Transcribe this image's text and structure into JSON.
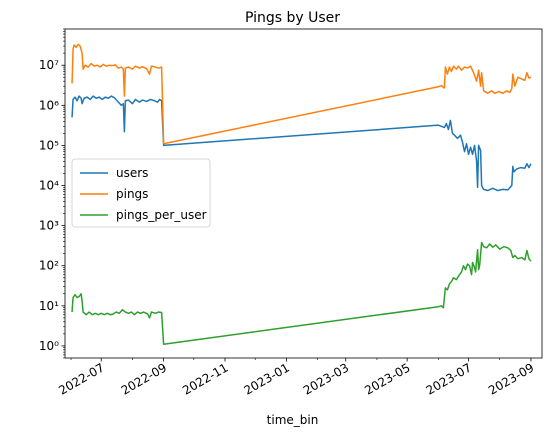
{
  "chart_data": {
    "type": "line",
    "title": "Pings by User",
    "xlabel": "time_bin",
    "ylabel": "",
    "yscale": "log",
    "ylim": [
      0.5,
      80000000
    ],
    "xlim": [
      "2022-05-26",
      "2023-09-12"
    ],
    "x_ticks": [
      "2022-07-01",
      "2022-09-01",
      "2022-11-01",
      "2023-01-01",
      "2023-03-01",
      "2023-05-01",
      "2023-07-01",
      "2023-09-01"
    ],
    "x_tick_labels": [
      "2022-07",
      "2022-09",
      "2022-11",
      "2023-01",
      "2023-03",
      "2023-05",
      "2023-07",
      "2023-09"
    ],
    "y_ticks": [
      1,
      10,
      100,
      1000,
      10000,
      100000,
      1000000,
      10000000
    ],
    "y_tick_labels": [
      "10⁰",
      "10¹",
      "10²",
      "10³",
      "10⁴",
      "10⁵",
      "10⁶",
      "10⁷"
    ],
    "legend_position": "center-left",
    "grid": false,
    "series": [
      {
        "name": "users",
        "color": "#1f77b4",
        "points": [
          [
            "2022-06-02",
            500000
          ],
          [
            "2022-06-03",
            1400000
          ],
          [
            "2022-06-05",
            1600000
          ],
          [
            "2022-06-07",
            1300000
          ],
          [
            "2022-06-09",
            1700000
          ],
          [
            "2022-06-11",
            1500000
          ],
          [
            "2022-06-12",
            1100000
          ],
          [
            "2022-06-14",
            1500000
          ],
          [
            "2022-06-17",
            1600000
          ],
          [
            "2022-06-20",
            1400000
          ],
          [
            "2022-06-23",
            1700000
          ],
          [
            "2022-06-26",
            1500000
          ],
          [
            "2022-06-29",
            1600000
          ],
          [
            "2022-07-02",
            1400000
          ],
          [
            "2022-07-05",
            1600000
          ],
          [
            "2022-07-08",
            1500000
          ],
          [
            "2022-07-11",
            1700000
          ],
          [
            "2022-07-14",
            1550000
          ],
          [
            "2022-07-18",
            1200000
          ],
          [
            "2022-07-21",
            1000000
          ],
          [
            "2022-07-23",
            1100000
          ],
          [
            "2022-07-24",
            220000
          ],
          [
            "2022-07-25",
            1300000
          ],
          [
            "2022-07-28",
            1350000
          ],
          [
            "2022-08-01",
            1100000
          ],
          [
            "2022-08-04",
            1400000
          ],
          [
            "2022-08-08",
            1200000
          ],
          [
            "2022-08-11",
            1350000
          ],
          [
            "2022-08-15",
            1250000
          ],
          [
            "2022-08-19",
            1400000
          ],
          [
            "2022-08-23",
            1300000
          ],
          [
            "2022-08-26",
            1200000
          ],
          [
            "2022-08-28",
            1400000
          ],
          [
            "2022-08-30",
            1300000
          ],
          [
            "2022-09-01",
            100000
          ],
          [
            "2023-06-01",
            320000
          ],
          [
            "2023-06-04",
            300000
          ],
          [
            "2023-06-07",
            280000
          ],
          [
            "2023-06-09",
            350000
          ],
          [
            "2023-06-11",
            250000
          ],
          [
            "2023-06-13",
            420000
          ],
          [
            "2023-06-15",
            200000
          ],
          [
            "2023-06-17",
            180000
          ],
          [
            "2023-06-20",
            150000
          ],
          [
            "2023-06-23",
            180000
          ],
          [
            "2023-06-25",
            120000
          ],
          [
            "2023-06-27",
            70000
          ],
          [
            "2023-06-29",
            110000
          ],
          [
            "2023-07-01",
            60000
          ],
          [
            "2023-07-03",
            90000
          ],
          [
            "2023-07-05",
            60000
          ],
          [
            "2023-07-07",
            100000
          ],
          [
            "2023-07-09",
            40000
          ],
          [
            "2023-07-10",
            9000
          ],
          [
            "2023-07-11",
            100000
          ],
          [
            "2023-07-13",
            75000
          ],
          [
            "2023-07-14",
            10000
          ],
          [
            "2023-07-16",
            8000
          ],
          [
            "2023-07-20",
            7500
          ],
          [
            "2023-07-25",
            8500
          ],
          [
            "2023-07-30",
            7500
          ],
          [
            "2023-08-04",
            8000
          ],
          [
            "2023-08-09",
            7800
          ],
          [
            "2023-08-13",
            10000
          ],
          [
            "2023-08-14",
            30000
          ],
          [
            "2023-08-15",
            22000
          ],
          [
            "2023-08-18",
            26000
          ],
          [
            "2023-08-22",
            28000
          ],
          [
            "2023-08-26",
            27000
          ],
          [
            "2023-08-28",
            35000
          ],
          [
            "2023-08-30",
            28000
          ],
          [
            "2023-09-01",
            35000
          ]
        ]
      },
      {
        "name": "pings",
        "color": "#ff7f0e",
        "points": [
          [
            "2022-06-02",
            3500000
          ],
          [
            "2022-06-03",
            25000000
          ],
          [
            "2022-06-04",
            32000000
          ],
          [
            "2022-06-06",
            28000000
          ],
          [
            "2022-06-08",
            33000000
          ],
          [
            "2022-06-10",
            30000000
          ],
          [
            "2022-06-12",
            20000000
          ],
          [
            "2022-06-13",
            8000000
          ],
          [
            "2022-06-15",
            10000000
          ],
          [
            "2022-06-18",
            9000000
          ],
          [
            "2022-06-21",
            11000000
          ],
          [
            "2022-06-24",
            9500000
          ],
          [
            "2022-06-27",
            10000000
          ],
          [
            "2022-06-30",
            9000000
          ],
          [
            "2022-07-03",
            10500000
          ],
          [
            "2022-07-06",
            9500000
          ],
          [
            "2022-07-09",
            10000000
          ],
          [
            "2022-07-12",
            9800000
          ],
          [
            "2022-07-15",
            10200000
          ],
          [
            "2022-07-18",
            8500000
          ],
          [
            "2022-07-21",
            9000000
          ],
          [
            "2022-07-23",
            8000000
          ],
          [
            "2022-07-24",
            1700000
          ],
          [
            "2022-07-25",
            8500000
          ],
          [
            "2022-07-28",
            9000000
          ],
          [
            "2022-08-01",
            8000000
          ],
          [
            "2022-08-04",
            9500000
          ],
          [
            "2022-08-08",
            8500000
          ],
          [
            "2022-08-11",
            9200000
          ],
          [
            "2022-08-15",
            8200000
          ],
          [
            "2022-08-18",
            6000000
          ],
          [
            "2022-08-20",
            9500000
          ],
          [
            "2022-08-24",
            9000000
          ],
          [
            "2022-08-27",
            8500000
          ],
          [
            "2022-08-30",
            9000000
          ],
          [
            "2022-09-01",
            110000
          ],
          [
            "2023-06-01",
            2900000
          ],
          [
            "2023-06-04",
            3100000
          ],
          [
            "2023-06-07",
            2700000
          ],
          [
            "2023-06-08",
            9000000
          ],
          [
            "2023-06-10",
            6000000
          ],
          [
            "2023-06-12",
            9000000
          ],
          [
            "2023-06-14",
            7000000
          ],
          [
            "2023-06-16",
            9500000
          ],
          [
            "2023-06-19",
            8000000
          ],
          [
            "2023-06-21",
            9500000
          ],
          [
            "2023-06-24",
            7500000
          ],
          [
            "2023-06-27",
            9000000
          ],
          [
            "2023-06-30",
            8500000
          ],
          [
            "2023-07-03",
            9500000
          ],
          [
            "2023-07-06",
            6500000
          ],
          [
            "2023-07-09",
            4000000
          ],
          [
            "2023-07-11",
            7500000
          ],
          [
            "2023-07-13",
            3000000
          ],
          [
            "2023-07-14",
            6500000
          ],
          [
            "2023-07-16",
            2300000
          ],
          [
            "2023-07-20",
            2000000
          ],
          [
            "2023-07-24",
            2300000
          ],
          [
            "2023-07-27",
            2000000
          ],
          [
            "2023-07-31",
            2200000
          ],
          [
            "2023-08-04",
            2000000
          ],
          [
            "2023-08-08",
            2300000
          ],
          [
            "2023-08-11",
            2100000
          ],
          [
            "2023-08-13",
            2600000
          ],
          [
            "2023-08-14",
            6000000
          ],
          [
            "2023-08-16",
            3000000
          ],
          [
            "2023-08-19",
            5000000
          ],
          [
            "2023-08-23",
            4500000
          ],
          [
            "2023-08-26",
            4200000
          ],
          [
            "2023-08-28",
            6500000
          ],
          [
            "2023-08-30",
            4800000
          ],
          [
            "2023-09-01",
            5000000
          ]
        ]
      },
      {
        "name": "pings_per_user",
        "color": "#2ca02c",
        "points": [
          [
            "2022-06-02",
            7
          ],
          [
            "2022-06-03",
            16
          ],
          [
            "2022-06-05",
            19
          ],
          [
            "2022-06-07",
            16
          ],
          [
            "2022-06-09",
            17
          ],
          [
            "2022-06-11",
            20
          ],
          [
            "2022-06-12",
            13
          ],
          [
            "2022-06-13",
            7
          ],
          [
            "2022-06-16",
            6
          ],
          [
            "2022-06-19",
            7
          ],
          [
            "2022-06-22",
            6
          ],
          [
            "2022-06-25",
            6.5
          ],
          [
            "2022-06-28",
            6
          ],
          [
            "2022-07-01",
            6.5
          ],
          [
            "2022-07-04",
            6
          ],
          [
            "2022-07-07",
            6.5
          ],
          [
            "2022-07-10",
            6
          ],
          [
            "2022-07-13",
            6.3
          ],
          [
            "2022-07-16",
            7
          ],
          [
            "2022-07-19",
            6.5
          ],
          [
            "2022-07-22",
            8
          ],
          [
            "2022-07-25",
            7
          ],
          [
            "2022-07-28",
            6.5
          ],
          [
            "2022-07-31",
            7
          ],
          [
            "2022-08-03",
            6
          ],
          [
            "2022-08-06",
            7
          ],
          [
            "2022-08-09",
            6.5
          ],
          [
            "2022-08-12",
            7
          ],
          [
            "2022-08-16",
            6.3
          ],
          [
            "2022-08-18",
            5
          ],
          [
            "2022-08-20",
            7
          ],
          [
            "2022-08-24",
            6.5
          ],
          [
            "2022-08-27",
            7
          ],
          [
            "2022-08-30",
            6.8
          ],
          [
            "2022-09-01",
            1.1
          ],
          [
            "2023-06-01",
            9.5
          ],
          [
            "2023-06-04",
            10
          ],
          [
            "2023-06-06",
            9
          ],
          [
            "2023-06-08",
            28
          ],
          [
            "2023-06-10",
            25
          ],
          [
            "2023-06-12",
            35
          ],
          [
            "2023-06-14",
            40
          ],
          [
            "2023-06-16",
            50
          ],
          [
            "2023-06-19",
            45
          ],
          [
            "2023-06-21",
            55
          ],
          [
            "2023-06-24",
            70
          ],
          [
            "2023-06-26",
            100
          ],
          [
            "2023-06-28",
            80
          ],
          [
            "2023-06-30",
            110
          ],
          [
            "2023-07-02",
            100
          ],
          [
            "2023-07-04",
            60
          ],
          [
            "2023-07-05",
            120
          ],
          [
            "2023-07-07",
            90
          ],
          [
            "2023-07-08",
            70
          ],
          [
            "2023-07-10",
            250
          ],
          [
            "2023-07-11",
            80
          ],
          [
            "2023-07-12",
            100
          ],
          [
            "2023-07-14",
            380
          ],
          [
            "2023-07-16",
            300
          ],
          [
            "2023-07-19",
            280
          ],
          [
            "2023-07-22",
            350
          ],
          [
            "2023-07-25",
            290
          ],
          [
            "2023-07-28",
            330
          ],
          [
            "2023-08-01",
            260
          ],
          [
            "2023-08-05",
            300
          ],
          [
            "2023-08-09",
            280
          ],
          [
            "2023-08-12",
            240
          ],
          [
            "2023-08-14",
            160
          ],
          [
            "2023-08-16",
            180
          ],
          [
            "2023-08-19",
            150
          ],
          [
            "2023-08-23",
            160
          ],
          [
            "2023-08-26",
            140
          ],
          [
            "2023-08-28",
            240
          ],
          [
            "2023-08-30",
            150
          ],
          [
            "2023-09-01",
            130
          ]
        ]
      }
    ]
  }
}
